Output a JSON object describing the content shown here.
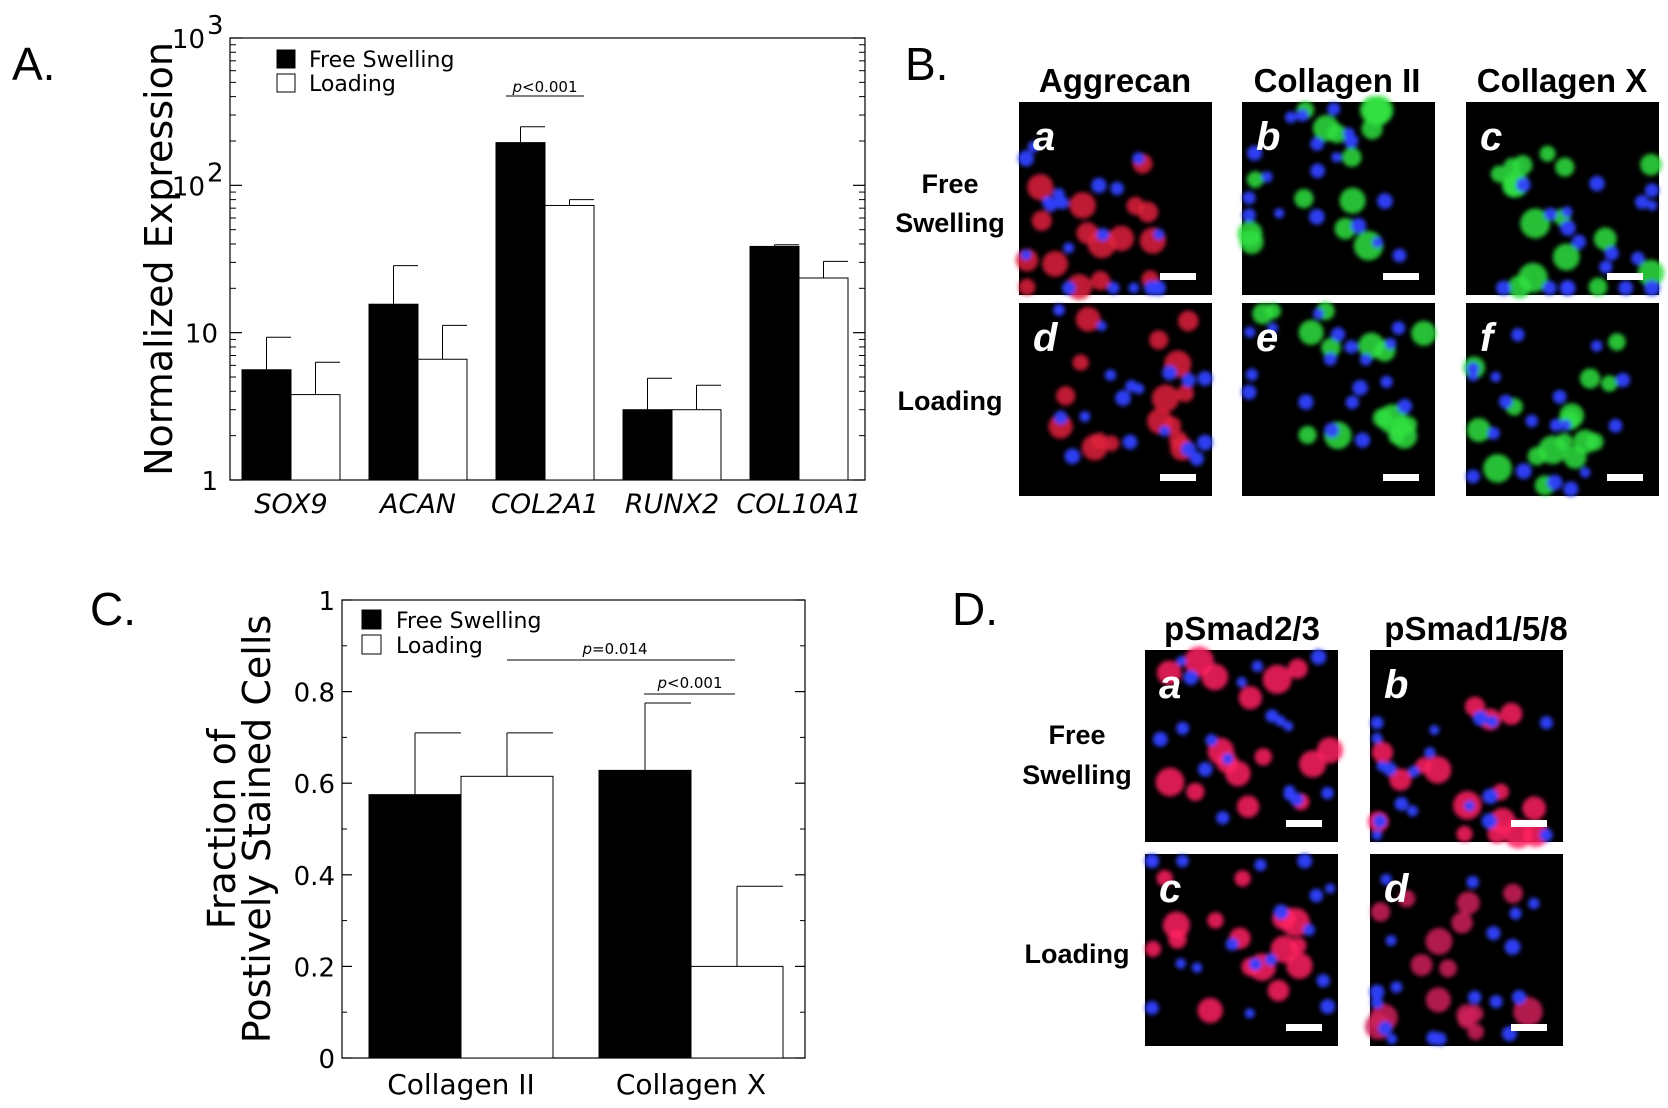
{
  "panels": {
    "A": {
      "letter": "A."
    },
    "B": {
      "letter": "B."
    },
    "C": {
      "letter": "C."
    },
    "D": {
      "letter": "D."
    }
  },
  "chart_data": [
    {
      "panel": "A",
      "type": "bar",
      "yscale": "log",
      "ylabel": "Normalized Expression",
      "ylim": [
        1,
        1000
      ],
      "yticks": [
        {
          "value": 1,
          "label": "1",
          "sup": ""
        },
        {
          "value": 10,
          "label": "10",
          "sup": ""
        },
        {
          "value": 100,
          "label": "10",
          "sup": "2"
        },
        {
          "value": 1000,
          "label": "10",
          "sup": "3"
        }
      ],
      "categories": [
        "SOX9",
        "ACAN",
        "COL2A1",
        "RUNX2",
        "COL10A1"
      ],
      "series": [
        {
          "name": "Free Swelling",
          "color": "#000000",
          "values": [
            5.6,
            15.6,
            195,
            3.0,
            38.5
          ],
          "err": [
            9.3,
            28.5,
            250,
            4.9,
            39.5
          ]
        },
        {
          "name": "Loading",
          "color": "#ffffff",
          "values": [
            3.8,
            6.6,
            73,
            3.0,
            23.5
          ],
          "err": [
            6.3,
            11.2,
            80,
            4.4,
            30.5
          ]
        }
      ],
      "annotations": [
        {
          "text": "p<0.001",
          "italic_prefix": "p",
          "rest": "<0.001",
          "category": 2
        }
      ]
    },
    {
      "panel": "C",
      "type": "bar",
      "ylabel_lines": [
        "Fraction of",
        "Postively Stained Cells"
      ],
      "ylim": [
        0,
        1
      ],
      "yticks": [
        {
          "value": 0,
          "label": "0"
        },
        {
          "value": 0.2,
          "label": "0.2"
        },
        {
          "value": 0.4,
          "label": "0.4"
        },
        {
          "value": 0.6,
          "label": "0.6"
        },
        {
          "value": 0.8,
          "label": "0.8"
        },
        {
          "value": 1,
          "label": "1"
        }
      ],
      "categories": [
        "Collagen II",
        "Collagen X"
      ],
      "series": [
        {
          "name": "Free Swelling",
          "color": "#000000",
          "values": [
            0.575,
            0.628
          ],
          "err": [
            0.71,
            0.775
          ]
        },
        {
          "name": "Loading",
          "color": "#ffffff",
          "values": [
            0.615,
            0.2
          ],
          "err": [
            0.71,
            0.375
          ]
        }
      ],
      "annotations": [
        {
          "italic_prefix": "p",
          "rest": "=0.014"
        },
        {
          "italic_prefix": "p",
          "rest": "<0.001"
        }
      ]
    }
  ],
  "micrographs_B": {
    "columns": [
      "Aggrecan",
      "Collagen II",
      "Collagen X"
    ],
    "rows": [
      [
        "Free",
        "Swelling"
      ],
      [
        "Loading"
      ]
    ],
    "cells": [
      {
        "label": "a",
        "stain": "#e0203c"
      },
      {
        "label": "b",
        "stain": "#30e040"
      },
      {
        "label": "c",
        "stain": "#30e040"
      },
      {
        "label": "d",
        "stain": "#e0203c"
      },
      {
        "label": "e",
        "stain": "#30e040"
      },
      {
        "label": "f",
        "stain": "#30e040"
      }
    ]
  },
  "micrographs_D": {
    "columns": [
      "pSmad2/3",
      "pSmad1/5/8"
    ],
    "rows": [
      [
        "Free",
        "Swelling"
      ],
      [
        "Loading"
      ]
    ],
    "cells": [
      {
        "label": "a",
        "stain": "#ff2060"
      },
      {
        "label": "b",
        "stain": "#ff2060"
      },
      {
        "label": "c",
        "stain": "#ff2060"
      },
      {
        "label": "d",
        "stain": "#d0205a"
      }
    ]
  }
}
